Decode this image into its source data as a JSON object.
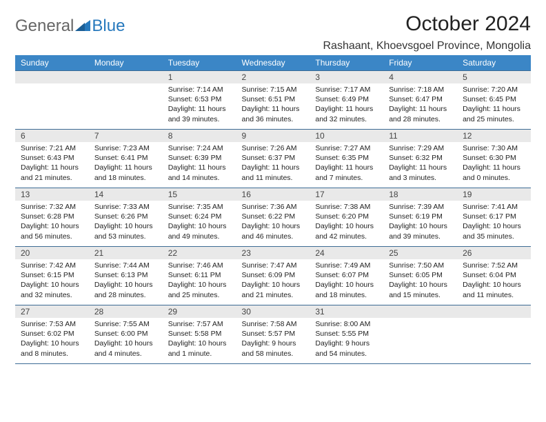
{
  "logo": {
    "part1": "General",
    "part2": "Blue"
  },
  "title": "October 2024",
  "location": "Rashaant, Khoevsgoel Province, Mongolia",
  "colors": {
    "header_bg": "#3b86c6",
    "header_text": "#ffffff",
    "daynum_bg": "#e9e9e9",
    "rule": "#3b6a94",
    "logo_blue": "#2779bd",
    "logo_gray": "#666666"
  },
  "daynames": [
    "Sunday",
    "Monday",
    "Tuesday",
    "Wednesday",
    "Thursday",
    "Friday",
    "Saturday"
  ],
  "weeks": [
    [
      {
        "num": "",
        "sunrise": "",
        "sunset": "",
        "daylight": ""
      },
      {
        "num": "",
        "sunrise": "",
        "sunset": "",
        "daylight": ""
      },
      {
        "num": "1",
        "sunrise": "Sunrise: 7:14 AM",
        "sunset": "Sunset: 6:53 PM",
        "daylight": "Daylight: 11 hours and 39 minutes."
      },
      {
        "num": "2",
        "sunrise": "Sunrise: 7:15 AM",
        "sunset": "Sunset: 6:51 PM",
        "daylight": "Daylight: 11 hours and 36 minutes."
      },
      {
        "num": "3",
        "sunrise": "Sunrise: 7:17 AM",
        "sunset": "Sunset: 6:49 PM",
        "daylight": "Daylight: 11 hours and 32 minutes."
      },
      {
        "num": "4",
        "sunrise": "Sunrise: 7:18 AM",
        "sunset": "Sunset: 6:47 PM",
        "daylight": "Daylight: 11 hours and 28 minutes."
      },
      {
        "num": "5",
        "sunrise": "Sunrise: 7:20 AM",
        "sunset": "Sunset: 6:45 PM",
        "daylight": "Daylight: 11 hours and 25 minutes."
      }
    ],
    [
      {
        "num": "6",
        "sunrise": "Sunrise: 7:21 AM",
        "sunset": "Sunset: 6:43 PM",
        "daylight": "Daylight: 11 hours and 21 minutes."
      },
      {
        "num": "7",
        "sunrise": "Sunrise: 7:23 AM",
        "sunset": "Sunset: 6:41 PM",
        "daylight": "Daylight: 11 hours and 18 minutes."
      },
      {
        "num": "8",
        "sunrise": "Sunrise: 7:24 AM",
        "sunset": "Sunset: 6:39 PM",
        "daylight": "Daylight: 11 hours and 14 minutes."
      },
      {
        "num": "9",
        "sunrise": "Sunrise: 7:26 AM",
        "sunset": "Sunset: 6:37 PM",
        "daylight": "Daylight: 11 hours and 11 minutes."
      },
      {
        "num": "10",
        "sunrise": "Sunrise: 7:27 AM",
        "sunset": "Sunset: 6:35 PM",
        "daylight": "Daylight: 11 hours and 7 minutes."
      },
      {
        "num": "11",
        "sunrise": "Sunrise: 7:29 AM",
        "sunset": "Sunset: 6:32 PM",
        "daylight": "Daylight: 11 hours and 3 minutes."
      },
      {
        "num": "12",
        "sunrise": "Sunrise: 7:30 AM",
        "sunset": "Sunset: 6:30 PM",
        "daylight": "Daylight: 11 hours and 0 minutes."
      }
    ],
    [
      {
        "num": "13",
        "sunrise": "Sunrise: 7:32 AM",
        "sunset": "Sunset: 6:28 PM",
        "daylight": "Daylight: 10 hours and 56 minutes."
      },
      {
        "num": "14",
        "sunrise": "Sunrise: 7:33 AM",
        "sunset": "Sunset: 6:26 PM",
        "daylight": "Daylight: 10 hours and 53 minutes."
      },
      {
        "num": "15",
        "sunrise": "Sunrise: 7:35 AM",
        "sunset": "Sunset: 6:24 PM",
        "daylight": "Daylight: 10 hours and 49 minutes."
      },
      {
        "num": "16",
        "sunrise": "Sunrise: 7:36 AM",
        "sunset": "Sunset: 6:22 PM",
        "daylight": "Daylight: 10 hours and 46 minutes."
      },
      {
        "num": "17",
        "sunrise": "Sunrise: 7:38 AM",
        "sunset": "Sunset: 6:20 PM",
        "daylight": "Daylight: 10 hours and 42 minutes."
      },
      {
        "num": "18",
        "sunrise": "Sunrise: 7:39 AM",
        "sunset": "Sunset: 6:19 PM",
        "daylight": "Daylight: 10 hours and 39 minutes."
      },
      {
        "num": "19",
        "sunrise": "Sunrise: 7:41 AM",
        "sunset": "Sunset: 6:17 PM",
        "daylight": "Daylight: 10 hours and 35 minutes."
      }
    ],
    [
      {
        "num": "20",
        "sunrise": "Sunrise: 7:42 AM",
        "sunset": "Sunset: 6:15 PM",
        "daylight": "Daylight: 10 hours and 32 minutes."
      },
      {
        "num": "21",
        "sunrise": "Sunrise: 7:44 AM",
        "sunset": "Sunset: 6:13 PM",
        "daylight": "Daylight: 10 hours and 28 minutes."
      },
      {
        "num": "22",
        "sunrise": "Sunrise: 7:46 AM",
        "sunset": "Sunset: 6:11 PM",
        "daylight": "Daylight: 10 hours and 25 minutes."
      },
      {
        "num": "23",
        "sunrise": "Sunrise: 7:47 AM",
        "sunset": "Sunset: 6:09 PM",
        "daylight": "Daylight: 10 hours and 21 minutes."
      },
      {
        "num": "24",
        "sunrise": "Sunrise: 7:49 AM",
        "sunset": "Sunset: 6:07 PM",
        "daylight": "Daylight: 10 hours and 18 minutes."
      },
      {
        "num": "25",
        "sunrise": "Sunrise: 7:50 AM",
        "sunset": "Sunset: 6:05 PM",
        "daylight": "Daylight: 10 hours and 15 minutes."
      },
      {
        "num": "26",
        "sunrise": "Sunrise: 7:52 AM",
        "sunset": "Sunset: 6:04 PM",
        "daylight": "Daylight: 10 hours and 11 minutes."
      }
    ],
    [
      {
        "num": "27",
        "sunrise": "Sunrise: 7:53 AM",
        "sunset": "Sunset: 6:02 PM",
        "daylight": "Daylight: 10 hours and 8 minutes."
      },
      {
        "num": "28",
        "sunrise": "Sunrise: 7:55 AM",
        "sunset": "Sunset: 6:00 PM",
        "daylight": "Daylight: 10 hours and 4 minutes."
      },
      {
        "num": "29",
        "sunrise": "Sunrise: 7:57 AM",
        "sunset": "Sunset: 5:58 PM",
        "daylight": "Daylight: 10 hours and 1 minute."
      },
      {
        "num": "30",
        "sunrise": "Sunrise: 7:58 AM",
        "sunset": "Sunset: 5:57 PM",
        "daylight": "Daylight: 9 hours and 58 minutes."
      },
      {
        "num": "31",
        "sunrise": "Sunrise: 8:00 AM",
        "sunset": "Sunset: 5:55 PM",
        "daylight": "Daylight: 9 hours and 54 minutes."
      },
      {
        "num": "",
        "sunrise": "",
        "sunset": "",
        "daylight": ""
      },
      {
        "num": "",
        "sunrise": "",
        "sunset": "",
        "daylight": ""
      }
    ]
  ]
}
